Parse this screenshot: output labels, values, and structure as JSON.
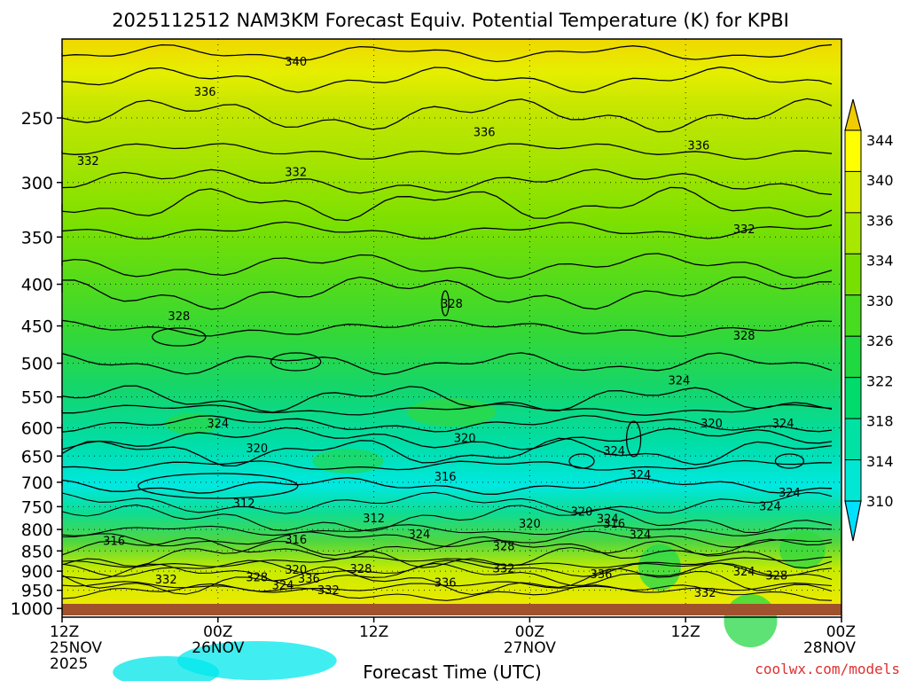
{
  "chart_data": {
    "type": "heatmap",
    "title": "2025112512 NAM3KM Forecast Equiv. Potential Temperature (K) for KPBI",
    "xlabel": "Forecast Time (UTC)",
    "ylabel": "",
    "credit": "coolwx.com/models",
    "x_ticks": [
      {
        "hours": 0,
        "l1": "12Z",
        "l2": "25NOV",
        "l3": "2025"
      },
      {
        "hours": 12,
        "l1": "00Z",
        "l2": "26NOV",
        "l3": ""
      },
      {
        "hours": 24,
        "l1": "12Z",
        "l2": "",
        "l3": ""
      },
      {
        "hours": 36,
        "l1": "00Z",
        "l2": "27NOV",
        "l3": ""
      },
      {
        "hours": 48,
        "l1": "12Z",
        "l2": "",
        "l3": ""
      },
      {
        "hours": 60,
        "l1": "00Z",
        "l2": "28NOV",
        "l3": ""
      }
    ],
    "xlim_hours": [
      0,
      60
    ],
    "y_pressure_ticks": [
      250,
      300,
      350,
      400,
      450,
      500,
      550,
      600,
      650,
      700,
      750,
      800,
      850,
      900,
      950,
      1000
    ],
    "y_pressure_range": [
      200,
      1025
    ],
    "y_scale": "log-pressure, inverted",
    "colorbar": {
      "ticks": [
        310,
        314,
        318,
        322,
        326,
        330,
        334,
        336,
        340,
        344
      ],
      "colors": [
        "#00e0ff",
        "#00e8d4",
        "#00e2a4",
        "#00dc6c",
        "#20d840",
        "#48dc20",
        "#78e000",
        "#a8e800",
        "#d8f000",
        "#ffff00",
        "#f0cc00"
      ]
    },
    "contour_labels": [
      {
        "text": "340",
        "hours": 18,
        "p": 213
      },
      {
        "text": "336",
        "hours": 11,
        "p": 232
      },
      {
        "text": "336",
        "hours": 32.5,
        "p": 260
      },
      {
        "text": "336",
        "hours": 49,
        "p": 270
      },
      {
        "text": "332",
        "hours": 2,
        "p": 282
      },
      {
        "text": "332",
        "hours": 18,
        "p": 291
      },
      {
        "text": "332",
        "hours": 52.5,
        "p": 342
      },
      {
        "text": "328",
        "hours": 9,
        "p": 437
      },
      {
        "text": "328",
        "hours": 30,
        "p": 422
      },
      {
        "text": "328",
        "hours": 52.5,
        "p": 462
      },
      {
        "text": "324",
        "hours": 47.5,
        "p": 524
      },
      {
        "text": "324",
        "hours": 12,
        "p": 592
      },
      {
        "text": "324",
        "hours": 55.5,
        "p": 592
      },
      {
        "text": "320",
        "hours": 50,
        "p": 592
      },
      {
        "text": "320",
        "hours": 15,
        "p": 635
      },
      {
        "text": "320",
        "hours": 31,
        "p": 617
      },
      {
        "text": "316",
        "hours": 29.5,
        "p": 688
      },
      {
        "text": "324",
        "hours": 44.5,
        "p": 685
      },
      {
        "text": "312",
        "hours": 14,
        "p": 742
      },
      {
        "text": "312",
        "hours": 24,
        "p": 774
      },
      {
        "text": "320",
        "hours": 40,
        "p": 760
      },
      {
        "text": "324",
        "hours": 42,
        "p": 775
      },
      {
        "text": "316",
        "hours": 42.5,
        "p": 786
      },
      {
        "text": "320",
        "hours": 36,
        "p": 786
      },
      {
        "text": "324",
        "hours": 27.5,
        "p": 810
      },
      {
        "text": "324",
        "hours": 44.5,
        "p": 811
      },
      {
        "text": "316",
        "hours": 4,
        "p": 825
      },
      {
        "text": "316",
        "hours": 18,
        "p": 822
      },
      {
        "text": "328",
        "hours": 34,
        "p": 838
      },
      {
        "text": "324",
        "hours": 54.5,
        "p": 748
      },
      {
        "text": "324",
        "hours": 56,
        "p": 720
      },
      {
        "text": "324",
        "hours": 42.5,
        "p": 640
      },
      {
        "text": "332",
        "hours": 34,
        "p": 892
      },
      {
        "text": "328",
        "hours": 23,
        "p": 893
      },
      {
        "text": "320",
        "hours": 18,
        "p": 895
      },
      {
        "text": "324",
        "hours": 52.5,
        "p": 900
      },
      {
        "text": "328",
        "hours": 55,
        "p": 910
      },
      {
        "text": "336",
        "hours": 41.5,
        "p": 907
      },
      {
        "text": "332",
        "hours": 8,
        "p": 920
      },
      {
        "text": "328",
        "hours": 15,
        "p": 915
      },
      {
        "text": "336",
        "hours": 19,
        "p": 918
      },
      {
        "text": "336",
        "hours": 29.5,
        "p": 928
      },
      {
        "text": "324",
        "hours": 17,
        "p": 935
      },
      {
        "text": "332",
        "hours": 20.5,
        "p": 948
      },
      {
        "text": "332",
        "hours": 49.5,
        "p": 955
      }
    ]
  }
}
